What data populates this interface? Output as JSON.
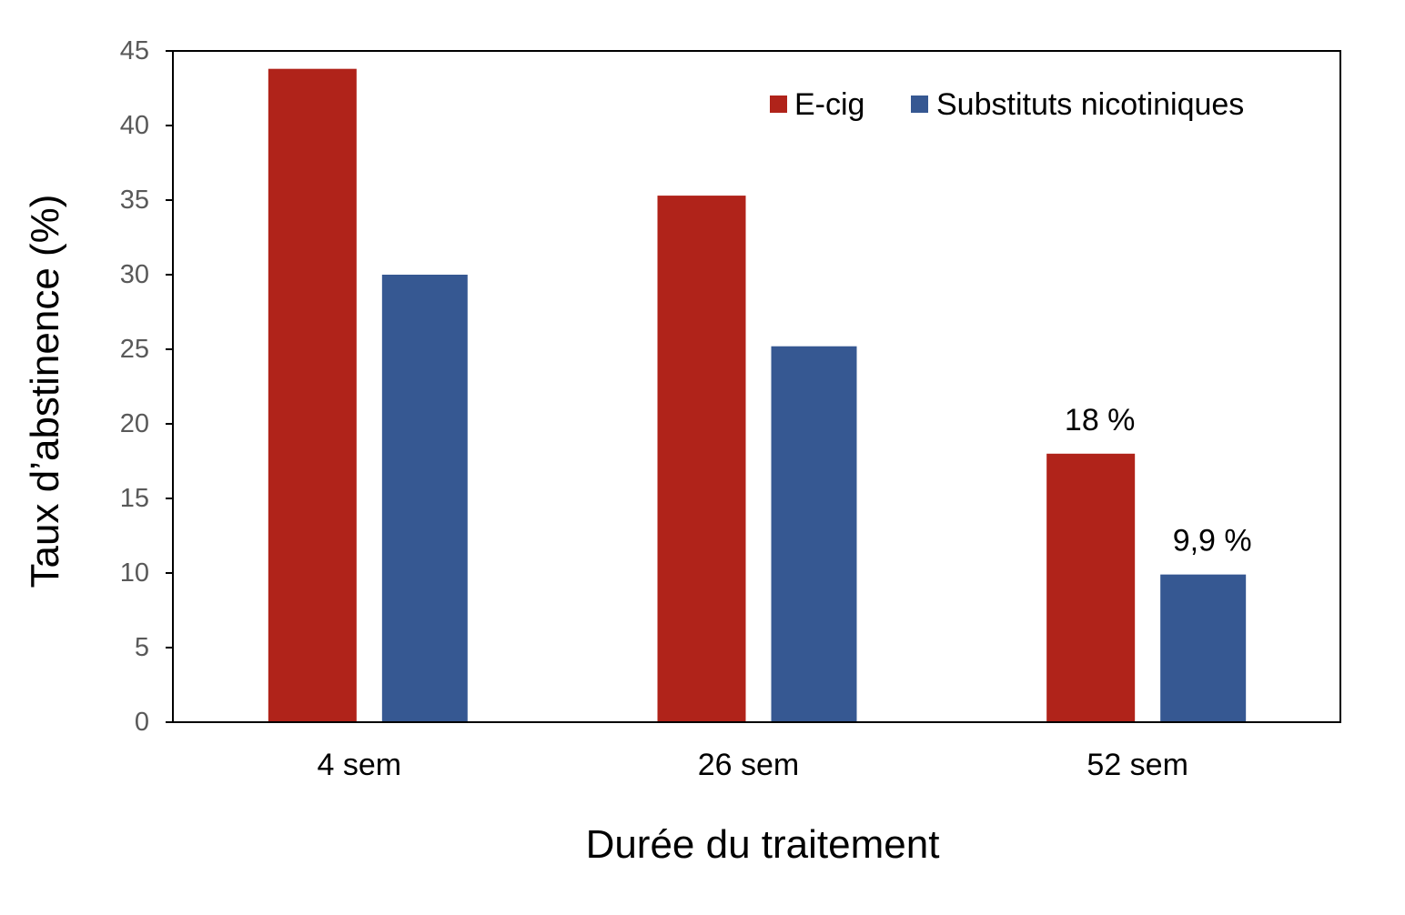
{
  "chart_data": {
    "type": "bar",
    "categories": [
      "4 sem",
      "26 sem",
      "52 sem"
    ],
    "series": [
      {
        "name": "E-cig",
        "values": [
          43.8,
          35.3,
          18.0
        ],
        "color": "#b0231a"
      },
      {
        "name": "Substituts nicotiniques",
        "values": [
          30.0,
          25.2,
          9.9
        ],
        "color": "#365892"
      }
    ],
    "data_labels": [
      {
        "series": 0,
        "category": 2,
        "text": "18 %"
      },
      {
        "series": 1,
        "category": 2,
        "text": "9,9 %"
      }
    ],
    "xlabel": "Durée du traitement",
    "ylabel": "Taux d’abstinence (%)",
    "ylim": [
      0,
      45
    ],
    "yticks": [
      0,
      5,
      10,
      15,
      20,
      25,
      30,
      35,
      40,
      45
    ],
    "grid": false,
    "legend_position": "top-right"
  }
}
